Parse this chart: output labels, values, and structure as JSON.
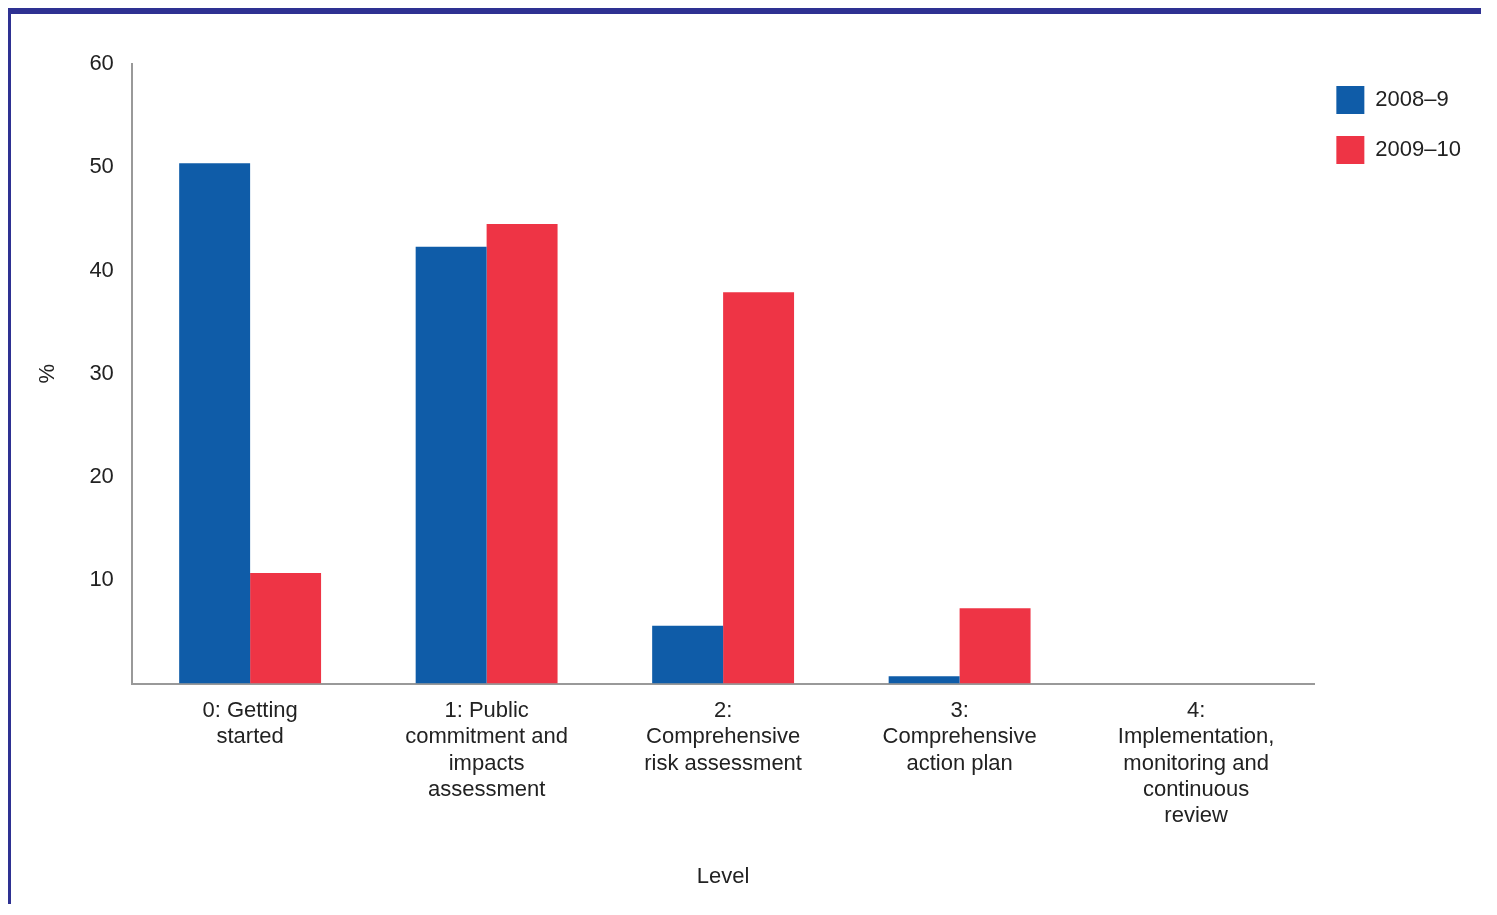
{
  "chart_data": {
    "type": "bar",
    "xlabel": "Level",
    "ylabel": "%",
    "categories": [
      "0: Getting started",
      "1: Public commitment and impacts assessment",
      "2: Comprehensive risk assessment",
      "3: Comprehensive action plan",
      "4: Implementation, monitoring and continuous review"
    ],
    "series": [
      {
        "name": "2008–9",
        "color": "#0f5ca8",
        "values": [
          50.4,
          42.3,
          5.6,
          0.7,
          0
        ]
      },
      {
        "name": "2009–10",
        "color": "#ee3445",
        "values": [
          10.7,
          44.5,
          37.9,
          7.3,
          0
        ]
      }
    ],
    "ylim": [
      0,
      60
    ],
    "yticks": [
      10,
      20,
      30,
      40,
      50,
      60
    ],
    "grid": false,
    "legend": "top right"
  }
}
